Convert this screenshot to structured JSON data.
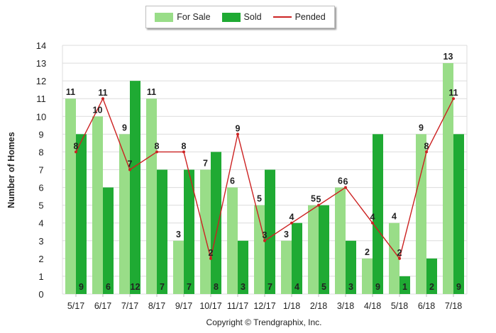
{
  "chart_data": {
    "type": "bar",
    "categories": [
      "5/17",
      "6/17",
      "7/17",
      "8/17",
      "9/17",
      "10/17",
      "11/17",
      "12/17",
      "1/18",
      "2/18",
      "3/18",
      "4/18",
      "5/18",
      "6/18",
      "7/18"
    ],
    "series": [
      {
        "name": "For Sale",
        "type": "bar",
        "color": "#99dd88",
        "values": [
          11,
          10,
          9,
          11,
          3,
          7,
          6,
          5,
          3,
          5,
          6,
          2,
          4,
          9,
          13
        ]
      },
      {
        "name": "Sold",
        "type": "bar",
        "color": "#1faa33",
        "values": [
          9,
          6,
          12,
          7,
          7,
          8,
          3,
          7,
          4,
          5,
          3,
          9,
          1,
          2,
          9
        ]
      },
      {
        "name": "Pended",
        "type": "line",
        "color": "#cc2222",
        "values": [
          8,
          11,
          7,
          8,
          8,
          2,
          9,
          3,
          4,
          5,
          6,
          4,
          2,
          8,
          11
        ]
      }
    ],
    "ylabel": "Number of Homes",
    "xlabel": "",
    "ylim": [
      0,
      14
    ],
    "yticks": [
      0,
      1,
      2,
      3,
      4,
      5,
      6,
      7,
      8,
      9,
      10,
      11,
      12,
      13,
      14
    ],
    "grid": true,
    "legend_position": "top-center"
  },
  "footer": "Copyright © Trendgraphix, Inc."
}
